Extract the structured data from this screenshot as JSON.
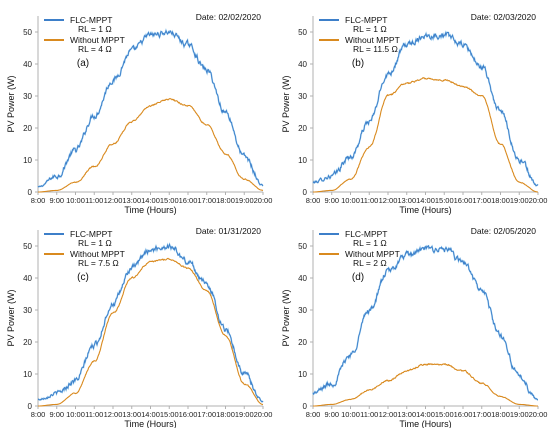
{
  "colors": {
    "flc": "#3d7fc9",
    "flc_noise": "#6fb6e8",
    "without": "#d98a1f",
    "axis": "#b0b0b0"
  },
  "chart_data": [
    {
      "type": "line",
      "panel_label": "(a)",
      "date": "Date: 02/02/2020",
      "xlabel": "Time (Hours)",
      "ylabel": "PV Power (W)",
      "x": [
        "8:00",
        "9:00",
        "10:00",
        "11:00",
        "12:00",
        "13:00",
        "14:00",
        "15:00",
        "16:00",
        "17:00",
        "18:00",
        "19:00",
        "20:00"
      ],
      "ylim": [
        0,
        55
      ],
      "yticks": [
        0,
        10,
        20,
        30,
        40,
        50
      ],
      "series": [
        {
          "name": "FLC-MPPT",
          "sub": "RL = 1 Ω",
          "values": [
            1.5,
            5,
            13,
            24,
            35,
            44,
            49,
            50,
            46,
            38,
            25,
            11,
            2
          ]
        },
        {
          "name": "Without MPPT",
          "sub": "RL = 4 Ω",
          "values": [
            0,
            0.5,
            3,
            8,
            15,
            22,
            27,
            29,
            27,
            21,
            12,
            4,
            0.5
          ]
        }
      ]
    },
    {
      "type": "line",
      "panel_label": "(b)",
      "date": "Date: 02/03/2020",
      "xlabel": "Time (Hours)",
      "ylabel": "PV Power (W)",
      "x": [
        "8:00",
        "9:00",
        "10:00",
        "11:00",
        "12:00",
        "13:00",
        "14:00",
        "15:00",
        "16:00",
        "17:00",
        "18:00",
        "19:00",
        "20:00"
      ],
      "ylim": [
        0,
        55
      ],
      "yticks": [
        0,
        10,
        20,
        30,
        40,
        50
      ],
      "series": [
        {
          "name": "FLC-MPPT",
          "sub": "RL = 1 Ω",
          "values": [
            3,
            5,
            11,
            22,
            37,
            46,
            49,
            49,
            46,
            39,
            25,
            10,
            2
          ]
        },
        {
          "name": "Without MPPT",
          "sub": "RL = 11.5 Ω",
          "values": [
            0,
            0.5,
            4,
            14,
            30,
            34,
            35.5,
            35,
            33,
            30,
            15,
            3,
            0
          ]
        }
      ]
    },
    {
      "type": "line",
      "panel_label": "(c)",
      "date": "Date: 01/31/2020",
      "xlabel": "Time (Hours)",
      "ylabel": "PV Power (W)",
      "x": [
        "8:00",
        "9:00",
        "10:00",
        "11:00",
        "12:00",
        "13:00",
        "14:00",
        "15:00",
        "16:00",
        "17:00",
        "18:00",
        "19:00",
        "20:00"
      ],
      "ylim": [
        0,
        55
      ],
      "yticks": [
        0,
        10,
        20,
        30,
        40,
        50
      ],
      "series": [
        {
          "name": "FLC-MPPT",
          "sub": "RL = 1 Ω",
          "values": [
            2,
            4,
            8,
            19,
            32,
            43,
            49,
            50,
            45,
            38,
            24,
            10,
            1.5
          ]
        },
        {
          "name": "Without MPPT",
          "sub": "RL = 7.5 Ω",
          "values": [
            0,
            0.5,
            4,
            14,
            29,
            40,
            45,
            46,
            43,
            36,
            22,
            7,
            0.5
          ]
        }
      ]
    },
    {
      "type": "line",
      "panel_label": "(d)",
      "date": "Date: 02/05/2020",
      "xlabel": "Time (Hours)",
      "ylabel": "PV Power (W)",
      "x": [
        "8:00",
        "9:00",
        "10:00",
        "11:00",
        "12:00",
        "13:00",
        "14:00",
        "15:00",
        "16:00",
        "17:00",
        "18:00",
        "19:00",
        "20:00"
      ],
      "ylim": [
        0,
        55
      ],
      "yticks": [
        0,
        10,
        20,
        30,
        40,
        50
      ],
      "series": [
        {
          "name": "FLC-MPPT",
          "sub": "RL = 1 Ω",
          "values": [
            4,
            7,
            16,
            30,
            42,
            47,
            49,
            49,
            45,
            36,
            22,
            9,
            2
          ]
        },
        {
          "name": "Without MPPT",
          "sub": "RL = 2 Ω",
          "values": [
            0,
            0.5,
            2,
            5,
            8,
            11,
            13,
            13,
            11,
            7,
            3,
            0.5,
            0
          ]
        }
      ]
    }
  ]
}
